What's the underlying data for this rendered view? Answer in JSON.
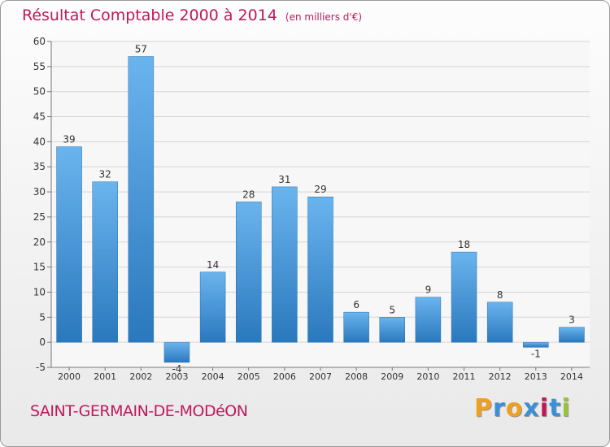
{
  "title": "Résultat Comptable 2000 à 2014",
  "subtitle": "(en milliers d'€)",
  "commune": "SAINT-GERMAIN-DE-MODéON",
  "logo": {
    "letters": [
      "P",
      "r",
      "o",
      "x",
      "i",
      "t",
      "i"
    ],
    "colors": [
      "#f0a020",
      "#3a8fd8",
      "#f0a020",
      "#3a8fd8",
      "#c0185c",
      "#3a8fd8",
      "#9ac23c"
    ]
  },
  "colors": {
    "accent": "#c0185c",
    "bar_top": "#6ab4ee",
    "bar_bottom": "#2a78bd"
  },
  "chart_data": {
    "type": "bar",
    "categories": [
      "2000",
      "2001",
      "2002",
      "2003",
      "2004",
      "2005",
      "2006",
      "2007",
      "2008",
      "2009",
      "2010",
      "2011",
      "2012",
      "2013",
      "2014"
    ],
    "values": [
      39,
      32,
      57,
      -4,
      14,
      28,
      31,
      29,
      6,
      5,
      9,
      18,
      8,
      -1,
      3
    ],
    "data_labels": [
      "39",
      "32",
      "57",
      "-4",
      "14",
      "28",
      "31",
      "29",
      "6",
      "5",
      "9",
      "18",
      "8",
      "-1",
      "3"
    ],
    "ylim": [
      -5,
      60
    ],
    "yticks": [
      -5,
      0,
      5,
      10,
      15,
      20,
      25,
      30,
      35,
      40,
      45,
      50,
      55,
      60
    ],
    "grid": true
  }
}
